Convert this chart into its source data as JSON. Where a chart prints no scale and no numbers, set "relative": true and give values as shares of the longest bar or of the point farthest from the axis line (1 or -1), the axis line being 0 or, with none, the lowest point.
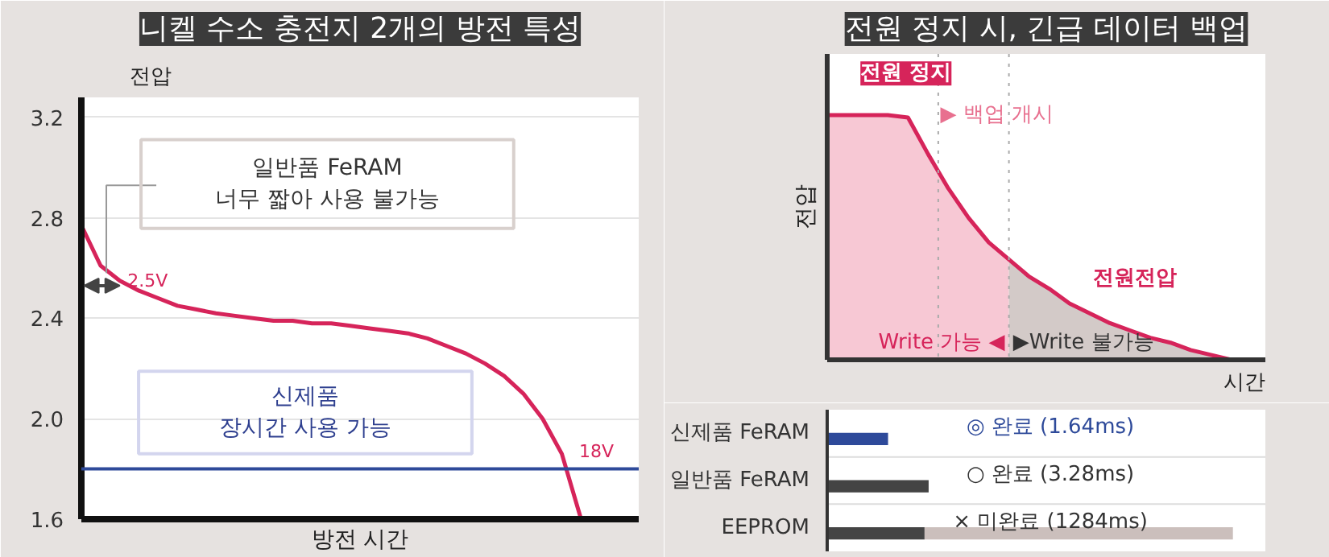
{
  "chart_data": [
    {
      "type": "line",
      "title": "니켈 수소 충전지 2개의 방전 특성",
      "xlabel": "방전 시간",
      "ylabel": "전압",
      "grid": "y",
      "categories": [
        null,
        null,
        null,
        null,
        null,
        null,
        null,
        null,
        null,
        null,
        null,
        null,
        null,
        null,
        null,
        null,
        null,
        null,
        null,
        null,
        null,
        null,
        null,
        null,
        null,
        null,
        null
      ],
      "ylim": [
        1.6,
        3.2
      ],
      "yticks": [
        1.6,
        {
          "value": 2,
          "label": "2.0"
        },
        2.4,
        2.8,
        3.2
      ],
      "series": [
        {
          "color": "#d6245a",
          "values": [
            2.77,
            2.61,
            2.55,
            2.51,
            2.48,
            2.45,
            2.435,
            2.42,
            2.41,
            2.4,
            2.39,
            2.39,
            2.38,
            2.38,
            2.37,
            2.36,
            2.35,
            2.34,
            2.32,
            2.29,
            2.26,
            2.22,
            2.17,
            2.1,
            2.0,
            1.86,
            1.6
          ]
        }
      ],
      "ref_lines": [
        {
          "axis": "y",
          "value": 1.8,
          "color": "#2e4a9a",
          "line_style": "solid"
        }
      ],
      "annotations": [
        "일반품 FeRAM\n너무 짧아 사용 불가능",
        "2.5V",
        "신제품\n장시간 사용 가능",
        "18V"
      ]
    },
    {
      "type": "line",
      "title": "전원 정지 시, 긴급 데이터 백업",
      "xlabel": "시간",
      "ylabel": "전압",
      "relative": true,
      "categories": [
        null,
        null,
        null,
        null,
        null,
        null,
        null,
        null,
        null,
        null,
        null,
        null,
        null,
        null,
        null,
        null,
        null,
        null,
        null,
        null,
        null
      ],
      "series": [
        {
          "type": "area",
          "color": "#f7c8d4",
          "values": [
            1,
            1,
            1,
            1,
            0.99,
            0.84,
            0.7,
            0.58,
            0.48,
            0.41,
            null,
            null,
            null,
            null,
            null,
            null,
            null,
            null,
            null,
            null,
            null
          ]
        },
        {
          "type": "area",
          "color": "#d3cac8",
          "values": [
            null,
            null,
            null,
            null,
            null,
            null,
            null,
            null,
            null,
            0.41,
            0.34,
            0.29,
            0.23,
            0.19,
            0.15,
            0.12,
            0.09,
            0.07,
            0.04,
            0.02,
            0
          ]
        },
        {
          "name": "전원전압",
          "color": "#d6245a",
          "values": [
            1,
            1,
            1,
            1,
            0.99,
            0.84,
            0.7,
            0.58,
            0.48,
            0.41,
            0.34,
            0.29,
            0.23,
            0.19,
            0.15,
            0.12,
            0.09,
            0.07,
            0.04,
            0.02,
            0
          ]
        }
      ],
      "annotations": [
        "전원 정지",
        "Write 가능 ◀",
        "▶Write 불가능",
        "▶ 백업 개시"
      ]
    },
    {
      "type": "bar",
      "orientation": "horizontal",
      "stacked": true,
      "relative": true,
      "categories": [
        "신제품 FeRAM",
        "일반품 FeRAM",
        "EEPROM"
      ],
      "series": [
        {
          "colors": [
            "#2e4a9a",
            "#444444",
            "#444444"
          ],
          "values": [
            0.15,
            0.25,
            0.24
          ]
        },
        {
          "color": "#cbbfbc",
          "values": [
            null,
            null,
            0.76
          ]
        }
      ],
      "annotations": [
        "◎ 완료 (1.64ms)",
        "○ 완료 (3.28ms)",
        "× 미완료 (1284ms)"
      ]
    }
  ]
}
